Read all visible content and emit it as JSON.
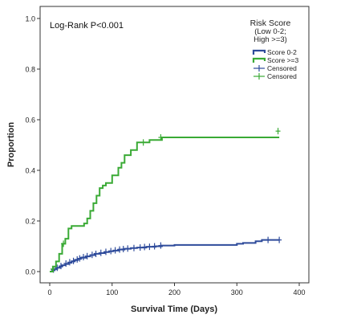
{
  "chart_data": {
    "type": "line",
    "step": true,
    "annotation": "Log-Rank P<0.001",
    "xlabel": "Survival Time (Days)",
    "ylabel": "Proportion",
    "xlim": [
      0,
      400
    ],
    "ylim": [
      0,
      1.0
    ],
    "x_ticks": [
      0,
      100,
      200,
      300,
      400
    ],
    "y_ticks": [
      0.0,
      0.2,
      0.4,
      0.6,
      0.8,
      1.0
    ],
    "x_tick_labels": [
      "0",
      "100",
      "200",
      "300",
      "400"
    ],
    "y_tick_labels": [
      "0.0",
      "0.2",
      "0.4",
      "0.6",
      "0.8",
      "1.0"
    ],
    "grid": false,
    "legend": {
      "placement": "top-right",
      "title_lines": [
        "Risk Score",
        "(Low 0-2;",
        "High >=3)"
      ],
      "entries": [
        {
          "label": "Score 0-2",
          "kind": "line",
          "color": "#2e4b9b"
        },
        {
          "label": "Score >=3",
          "kind": "line",
          "color": "#3aaa35"
        },
        {
          "label": "Censored",
          "kind": "censor",
          "color": "#2e4b9b"
        },
        {
          "label": "Censored",
          "kind": "censor",
          "color": "#3aaa35"
        }
      ]
    },
    "series": [
      {
        "name": "Score 0-2",
        "color": "#2e4b9b",
        "x": [
          0,
          4,
          8,
          12,
          16,
          20,
          25,
          30,
          35,
          40,
          45,
          50,
          58,
          65,
          72,
          80,
          88,
          95,
          102,
          110,
          120,
          130,
          140,
          155,
          170,
          180,
          200,
          220,
          250,
          280,
          300,
          310,
          330,
          340,
          368
        ],
        "y": [
          0.0,
          0.005,
          0.01,
          0.015,
          0.02,
          0.025,
          0.03,
          0.035,
          0.04,
          0.045,
          0.05,
          0.055,
          0.06,
          0.065,
          0.07,
          0.073,
          0.077,
          0.08,
          0.083,
          0.087,
          0.09,
          0.093,
          0.095,
          0.098,
          0.1,
          0.103,
          0.105,
          0.105,
          0.105,
          0.105,
          0.11,
          0.113,
          0.12,
          0.125,
          0.125
        ],
        "censored": [
          [
            6,
            0.008
          ],
          [
            12,
            0.015
          ],
          [
            18,
            0.022
          ],
          [
            26,
            0.032
          ],
          [
            32,
            0.037
          ],
          [
            38,
            0.042
          ],
          [
            44,
            0.048
          ],
          [
            48,
            0.052
          ],
          [
            54,
            0.057
          ],
          [
            60,
            0.061
          ],
          [
            68,
            0.066
          ],
          [
            74,
            0.07
          ],
          [
            82,
            0.074
          ],
          [
            90,
            0.078
          ],
          [
            98,
            0.081
          ],
          [
            105,
            0.084
          ],
          [
            112,
            0.087
          ],
          [
            118,
            0.089
          ],
          [
            125,
            0.091
          ],
          [
            135,
            0.093
          ],
          [
            145,
            0.095
          ],
          [
            152,
            0.097
          ],
          [
            160,
            0.098
          ],
          [
            168,
            0.1
          ],
          [
            178,
            0.103
          ],
          [
            350,
            0.125
          ],
          [
            368,
            0.125
          ]
        ]
      },
      {
        "name": "Score >=3",
        "color": "#3aaa35",
        "x": [
          0,
          5,
          10,
          15,
          20,
          25,
          30,
          35,
          45,
          55,
          60,
          65,
          70,
          75,
          80,
          85,
          90,
          100,
          110,
          115,
          120,
          130,
          140,
          160,
          180,
          368
        ],
        "y": [
          0.0,
          0.02,
          0.04,
          0.07,
          0.11,
          0.13,
          0.17,
          0.18,
          0.18,
          0.19,
          0.21,
          0.24,
          0.27,
          0.3,
          0.33,
          0.34,
          0.35,
          0.38,
          0.41,
          0.43,
          0.46,
          0.48,
          0.51,
          0.52,
          0.53,
          0.53
        ],
        "censored": [
          [
            5,
            0.01
          ],
          [
            22,
            0.11
          ],
          [
            150,
            0.51
          ],
          [
            178,
            0.53
          ],
          [
            366,
            0.555
          ]
        ]
      }
    ]
  }
}
